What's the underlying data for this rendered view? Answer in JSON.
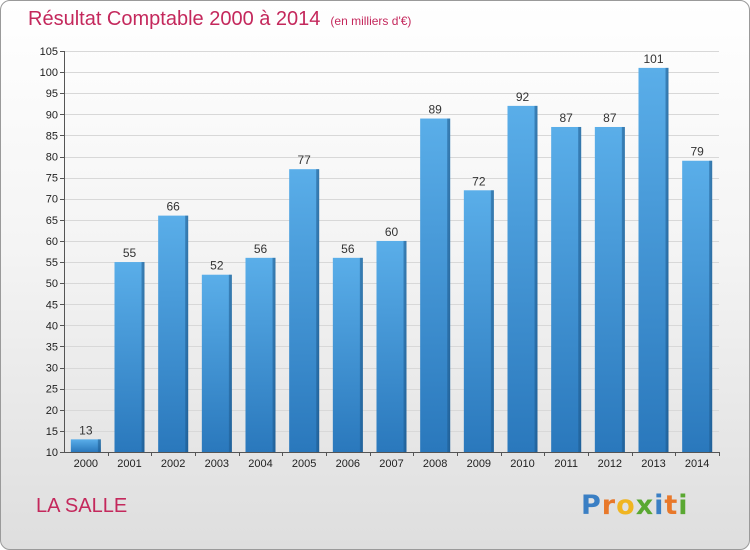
{
  "title": "Résultat Comptable 2000 à 2014",
  "subtitle": "(en milliers d'€)",
  "location": "LA SALLE",
  "logo": {
    "letters": [
      "P",
      "r",
      "o",
      "x",
      "i",
      "t",
      "i"
    ],
    "colors": [
      "#3a7fc4",
      "#e8782a",
      "#f0b521",
      "#5aa832",
      "#3a7fc4",
      "#e8782a",
      "#5aa832"
    ]
  },
  "chart_data": {
    "type": "bar",
    "categories": [
      "2000",
      "2001",
      "2002",
      "2003",
      "2004",
      "2005",
      "2006",
      "2007",
      "2008",
      "2009",
      "2010",
      "2011",
      "2012",
      "2013",
      "2014"
    ],
    "values": [
      13,
      55,
      66,
      52,
      56,
      77,
      56,
      60,
      89,
      72,
      92,
      87,
      87,
      101,
      79
    ],
    "title": "Résultat Comptable 2000 à 2014",
    "subtitle": "(en milliers d'€)",
    "xlabel": "",
    "ylabel": "",
    "ylim": [
      10,
      105
    ],
    "yticks": [
      10,
      15,
      20,
      25,
      30,
      35,
      40,
      45,
      50,
      55,
      60,
      65,
      70,
      75,
      80,
      85,
      90,
      95,
      100,
      105
    ],
    "grid": true,
    "bar_color": "#3d8ed6"
  }
}
